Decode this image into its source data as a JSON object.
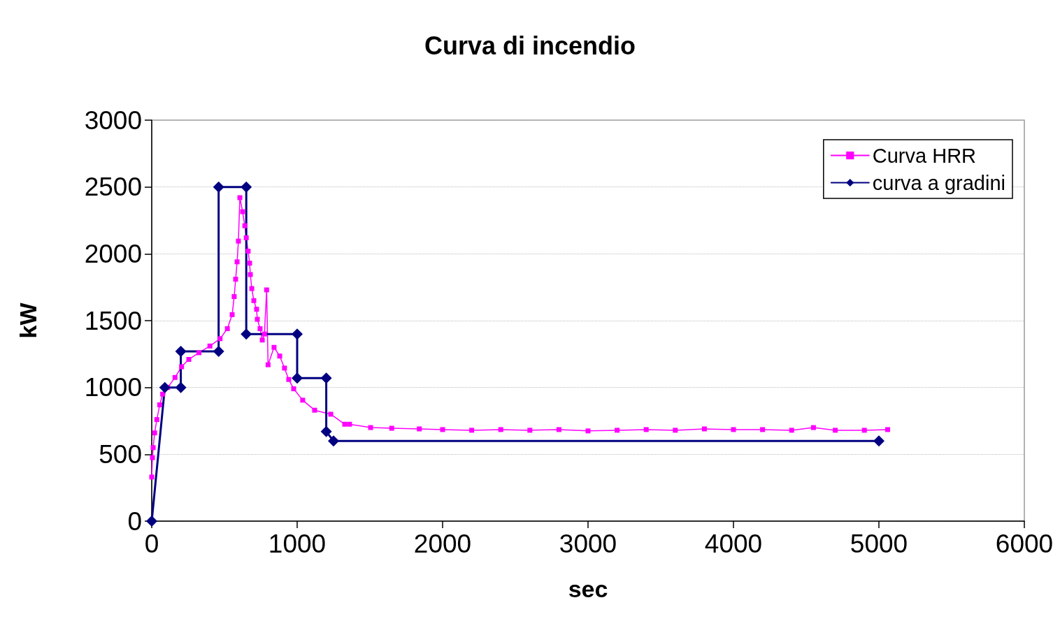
{
  "chart_data": {
    "type": "line",
    "title": "Curva di incendio",
    "xlabel": "sec",
    "ylabel": "kW",
    "xlim": [
      0,
      6000
    ],
    "xticks": [
      0,
      1000,
      2000,
      3000,
      4000,
      5000,
      6000
    ],
    "ylim": [
      0,
      3000
    ],
    "yticks": [
      0,
      500,
      1000,
      1500,
      2000,
      2500,
      3000
    ],
    "grid": "y",
    "legend": "top right",
    "line_style": "solid",
    "series": [
      {
        "name": "Curva HRR",
        "color": "#ff00ff",
        "marker": "square",
        "x": [
          0,
          5,
          10,
          20,
          35,
          55,
          75,
          110,
          160,
          205,
          255,
          325,
          400,
          470,
          520,
          553,
          567,
          577,
          587,
          596,
          606,
          625,
          640,
          650,
          663,
          673,
          678,
          688,
          702,
          721,
          726,
          745,
          760,
          775,
          790,
          800,
          841,
          880,
          913,
          942,
          976,
          1038,
          1120,
          1231,
          1327,
          1360,
          1505,
          1650,
          1840,
          2000,
          2200,
          2400,
          2600,
          2800,
          3000,
          3200,
          3400,
          3600,
          3800,
          4000,
          4200,
          4400,
          4550,
          4700,
          4900,
          5060
        ],
        "values": [
          330,
          475,
          550,
          660,
          760,
          870,
          950,
          1000,
          1075,
          1155,
          1210,
          1260,
          1310,
          1365,
          1440,
          1545,
          1680,
          1810,
          1940,
          2095,
          2420,
          2315,
          2210,
          2120,
          2020,
          1930,
          1845,
          1740,
          1650,
          1585,
          1510,
          1440,
          1355,
          1400,
          1730,
          1170,
          1300,
          1235,
          1145,
          1060,
          990,
          905,
          830,
          800,
          725,
          725,
          700,
          695,
          690,
          685,
          680,
          685,
          680,
          685,
          675,
          680,
          685,
          680,
          690,
          685,
          685,
          680,
          700,
          680,
          680,
          685
        ]
      },
      {
        "name": "curva a gradini",
        "color": "#000080",
        "marker": "diamond",
        "x": [
          0,
          90,
          200,
          200,
          460,
          460,
          650,
          650,
          1000,
          1000,
          1200,
          1200,
          1250,
          5000
        ],
        "values": [
          0,
          1000,
          1000,
          1270,
          1270,
          2500,
          2500,
          1400,
          1400,
          1070,
          1070,
          670,
          600,
          600
        ]
      }
    ]
  }
}
